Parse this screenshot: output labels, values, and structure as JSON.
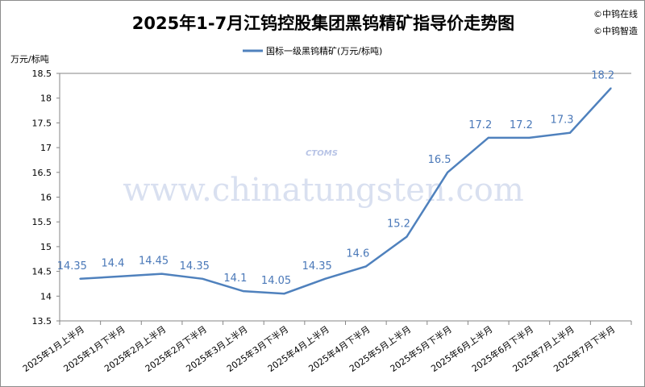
{
  "chart_data": {
    "type": "line",
    "title": "2025年1-7月江钨控股集团黑钨精矿指导价走势图",
    "ylabel": "万元/标吨",
    "xlabel": "",
    "ylim": [
      13.5,
      18.5
    ],
    "yticks": [
      13.5,
      14,
      14.5,
      15,
      15.5,
      16,
      16.5,
      17,
      17.5,
      18,
      18.5
    ],
    "grid": false,
    "legend_position": "top",
    "categories": [
      "2025年1月上半月",
      "2025年1月下半月",
      "2025年2月上半月",
      "2025年2月下半月",
      "2025年3月上半月",
      "2025年3月下半月",
      "2025年4月上半月",
      "2025年4月下半月",
      "2025年5月上半月",
      "2025年5月下半月",
      "2025年6月上半月",
      "2025年6月下半月",
      "2025年7月上半月",
      "2025年7月下半月"
    ],
    "series": [
      {
        "name": "国标一级黑钨精矿(万元/标吨)",
        "color": "#4f81bd",
        "values": [
          14.35,
          14.4,
          14.45,
          14.35,
          14.1,
          14.05,
          14.35,
          14.6,
          15.2,
          16.5,
          17.2,
          17.2,
          17.3,
          18.2
        ],
        "labels": [
          "14.35",
          "14.4",
          "14.45",
          "14.35",
          "14.1",
          "14.05",
          "14.35",
          "14.6",
          "15.2",
          "16.5",
          "17.2",
          "17.2",
          "17.3",
          "18.2"
        ]
      }
    ]
  },
  "copyright": [
    "©中钨在线",
    "©中钨智造"
  ],
  "watermark": {
    "text": "www.chinatungsten.com",
    "logo_text": "CTOMS"
  }
}
